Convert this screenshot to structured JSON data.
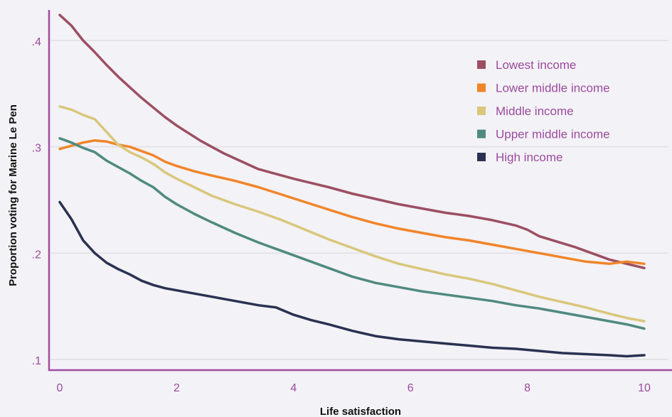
{
  "chart_data": {
    "type": "line",
    "title": "",
    "xlabel": "Life satisfaction",
    "ylabel": "Proportion voting for Marine Le Pen",
    "xlim": [
      0,
      10
    ],
    "ylim": [
      0.1,
      0.425
    ],
    "xticks": [
      0,
      2,
      4,
      6,
      8,
      10
    ],
    "xtick_labels": [
      "0",
      "2",
      "4",
      "6",
      "8",
      "10"
    ],
    "yticks": [
      0.1,
      0.2,
      0.3,
      0.4
    ],
    "ytick_labels": [
      ".1",
      ".2",
      ".3",
      ".4"
    ],
    "grid": "horizontal",
    "legend_position": "top-right",
    "series": [
      {
        "name": "Lowest income",
        "color": "#9c4f63",
        "points": [
          [
            0,
            0.424
          ],
          [
            0.2,
            0.414
          ],
          [
            0.4,
            0.4
          ],
          [
            0.6,
            0.389
          ],
          [
            0.8,
            0.377
          ],
          [
            1.0,
            0.366
          ],
          [
            1.2,
            0.356
          ],
          [
            1.4,
            0.346
          ],
          [
            1.6,
            0.337
          ],
          [
            1.8,
            0.328
          ],
          [
            2.0,
            0.32
          ],
          [
            2.2,
            0.313
          ],
          [
            2.4,
            0.306
          ],
          [
            2.6,
            0.3
          ],
          [
            2.8,
            0.294
          ],
          [
            3.0,
            0.289
          ],
          [
            3.2,
            0.284
          ],
          [
            3.4,
            0.279
          ],
          [
            3.6,
            0.276
          ],
          [
            3.8,
            0.273
          ],
          [
            4.0,
            0.27
          ],
          [
            4.3,
            0.266
          ],
          [
            4.6,
            0.262
          ],
          [
            5.0,
            0.256
          ],
          [
            5.4,
            0.251
          ],
          [
            5.8,
            0.246
          ],
          [
            6.2,
            0.242
          ],
          [
            6.6,
            0.238
          ],
          [
            7.0,
            0.235
          ],
          [
            7.4,
            0.231
          ],
          [
            7.8,
            0.226
          ],
          [
            8.0,
            0.222
          ],
          [
            8.2,
            0.216
          ],
          [
            8.5,
            0.211
          ],
          [
            8.8,
            0.206
          ],
          [
            9.1,
            0.2
          ],
          [
            9.4,
            0.194
          ],
          [
            9.7,
            0.19
          ],
          [
            10.0,
            0.186
          ]
        ]
      },
      {
        "name": "Lower middle income",
        "color": "#f0852a",
        "points": [
          [
            0,
            0.298
          ],
          [
            0.2,
            0.301
          ],
          [
            0.4,
            0.304
          ],
          [
            0.6,
            0.306
          ],
          [
            0.8,
            0.305
          ],
          [
            1.0,
            0.302
          ],
          [
            1.2,
            0.3
          ],
          [
            1.4,
            0.296
          ],
          [
            1.6,
            0.292
          ],
          [
            1.8,
            0.286
          ],
          [
            2.0,
            0.282
          ],
          [
            2.3,
            0.277
          ],
          [
            2.6,
            0.273
          ],
          [
            3.0,
            0.268
          ],
          [
            3.4,
            0.262
          ],
          [
            3.8,
            0.255
          ],
          [
            4.2,
            0.248
          ],
          [
            4.6,
            0.241
          ],
          [
            5.0,
            0.234
          ],
          [
            5.4,
            0.228
          ],
          [
            5.8,
            0.223
          ],
          [
            6.2,
            0.219
          ],
          [
            6.6,
            0.215
          ],
          [
            7.0,
            0.212
          ],
          [
            7.4,
            0.208
          ],
          [
            7.8,
            0.204
          ],
          [
            8.2,
            0.2
          ],
          [
            8.6,
            0.196
          ],
          [
            9.0,
            0.192
          ],
          [
            9.4,
            0.19
          ],
          [
            9.7,
            0.192
          ],
          [
            10.0,
            0.19
          ]
        ]
      },
      {
        "name": "Middle income",
        "color": "#d9c77c",
        "points": [
          [
            0,
            0.338
          ],
          [
            0.2,
            0.335
          ],
          [
            0.4,
            0.33
          ],
          [
            0.6,
            0.326
          ],
          [
            0.8,
            0.314
          ],
          [
            1.0,
            0.302
          ],
          [
            1.2,
            0.295
          ],
          [
            1.4,
            0.29
          ],
          [
            1.6,
            0.284
          ],
          [
            1.8,
            0.276
          ],
          [
            2.0,
            0.27
          ],
          [
            2.3,
            0.262
          ],
          [
            2.6,
            0.254
          ],
          [
            3.0,
            0.246
          ],
          [
            3.4,
            0.239
          ],
          [
            3.8,
            0.231
          ],
          [
            4.2,
            0.222
          ],
          [
            4.6,
            0.213
          ],
          [
            5.0,
            0.205
          ],
          [
            5.4,
            0.197
          ],
          [
            5.8,
            0.19
          ],
          [
            6.2,
            0.185
          ],
          [
            6.6,
            0.18
          ],
          [
            7.0,
            0.176
          ],
          [
            7.4,
            0.171
          ],
          [
            7.8,
            0.165
          ],
          [
            8.2,
            0.159
          ],
          [
            8.6,
            0.154
          ],
          [
            9.0,
            0.149
          ],
          [
            9.4,
            0.143
          ],
          [
            9.7,
            0.139
          ],
          [
            10.0,
            0.136
          ]
        ]
      },
      {
        "name": "Upper middle income",
        "color": "#4f8a80",
        "points": [
          [
            0,
            0.308
          ],
          [
            0.2,
            0.304
          ],
          [
            0.4,
            0.299
          ],
          [
            0.6,
            0.295
          ],
          [
            0.8,
            0.287
          ],
          [
            1.0,
            0.281
          ],
          [
            1.2,
            0.275
          ],
          [
            1.4,
            0.268
          ],
          [
            1.6,
            0.262
          ],
          [
            1.8,
            0.253
          ],
          [
            2.0,
            0.246
          ],
          [
            2.3,
            0.237
          ],
          [
            2.6,
            0.229
          ],
          [
            3.0,
            0.219
          ],
          [
            3.4,
            0.21
          ],
          [
            3.8,
            0.202
          ],
          [
            4.2,
            0.194
          ],
          [
            4.6,
            0.186
          ],
          [
            5.0,
            0.178
          ],
          [
            5.4,
            0.172
          ],
          [
            5.8,
            0.168
          ],
          [
            6.2,
            0.164
          ],
          [
            6.6,
            0.161
          ],
          [
            7.0,
            0.158
          ],
          [
            7.4,
            0.155
          ],
          [
            7.8,
            0.151
          ],
          [
            8.2,
            0.148
          ],
          [
            8.6,
            0.144
          ],
          [
            9.0,
            0.14
          ],
          [
            9.4,
            0.136
          ],
          [
            9.7,
            0.133
          ],
          [
            10.0,
            0.129
          ]
        ]
      },
      {
        "name": "High income",
        "color": "#2a3251",
        "points": [
          [
            0,
            0.248
          ],
          [
            0.2,
            0.232
          ],
          [
            0.4,
            0.212
          ],
          [
            0.6,
            0.2
          ],
          [
            0.8,
            0.191
          ],
          [
            1.0,
            0.185
          ],
          [
            1.2,
            0.18
          ],
          [
            1.4,
            0.174
          ],
          [
            1.6,
            0.17
          ],
          [
            1.8,
            0.167
          ],
          [
            2.0,
            0.165
          ],
          [
            2.3,
            0.162
          ],
          [
            2.6,
            0.159
          ],
          [
            3.0,
            0.155
          ],
          [
            3.4,
            0.151
          ],
          [
            3.7,
            0.149
          ],
          [
            4.0,
            0.142
          ],
          [
            4.3,
            0.137
          ],
          [
            4.6,
            0.133
          ],
          [
            5.0,
            0.127
          ],
          [
            5.4,
            0.122
          ],
          [
            5.8,
            0.119
          ],
          [
            6.2,
            0.117
          ],
          [
            6.6,
            0.115
          ],
          [
            7.0,
            0.113
          ],
          [
            7.4,
            0.111
          ],
          [
            7.8,
            0.11
          ],
          [
            8.2,
            0.108
          ],
          [
            8.6,
            0.106
          ],
          [
            9.0,
            0.105
          ],
          [
            9.4,
            0.104
          ],
          [
            9.7,
            0.103
          ],
          [
            10.0,
            0.104
          ]
        ]
      }
    ]
  }
}
